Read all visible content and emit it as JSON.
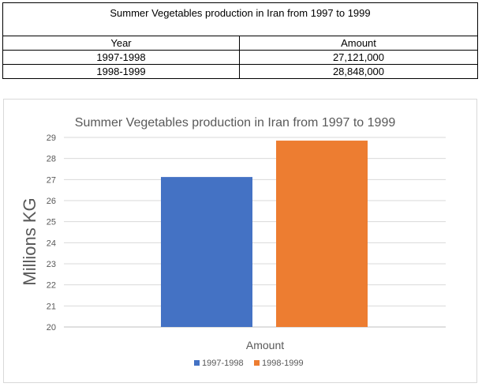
{
  "table": {
    "title": "Summer Vegetables production in Iran from 1997 to 1999",
    "headers": [
      "Year",
      "Amount"
    ],
    "rows": [
      [
        "1997-1998",
        "27,121,000"
      ],
      [
        "1998-1999",
        "28,848,000"
      ]
    ]
  },
  "chart_data": {
    "type": "bar",
    "title": "Summer Vegetables production in Iran from 1997 to 1999",
    "xlabel": "Amount",
    "ylabel": "Millions KG",
    "categories": [
      "Amount"
    ],
    "series": [
      {
        "name": "1997-1998",
        "values": [
          27.121
        ],
        "color": "#4472C4"
      },
      {
        "name": "1998-1999",
        "values": [
          28.848
        ],
        "color": "#ED7D31"
      }
    ],
    "ylim": [
      20,
      29
    ],
    "yticks": [
      "20",
      "21",
      "22",
      "23",
      "24",
      "25",
      "26",
      "27",
      "28",
      "29"
    ],
    "grid": true,
    "legend": "bottom"
  }
}
